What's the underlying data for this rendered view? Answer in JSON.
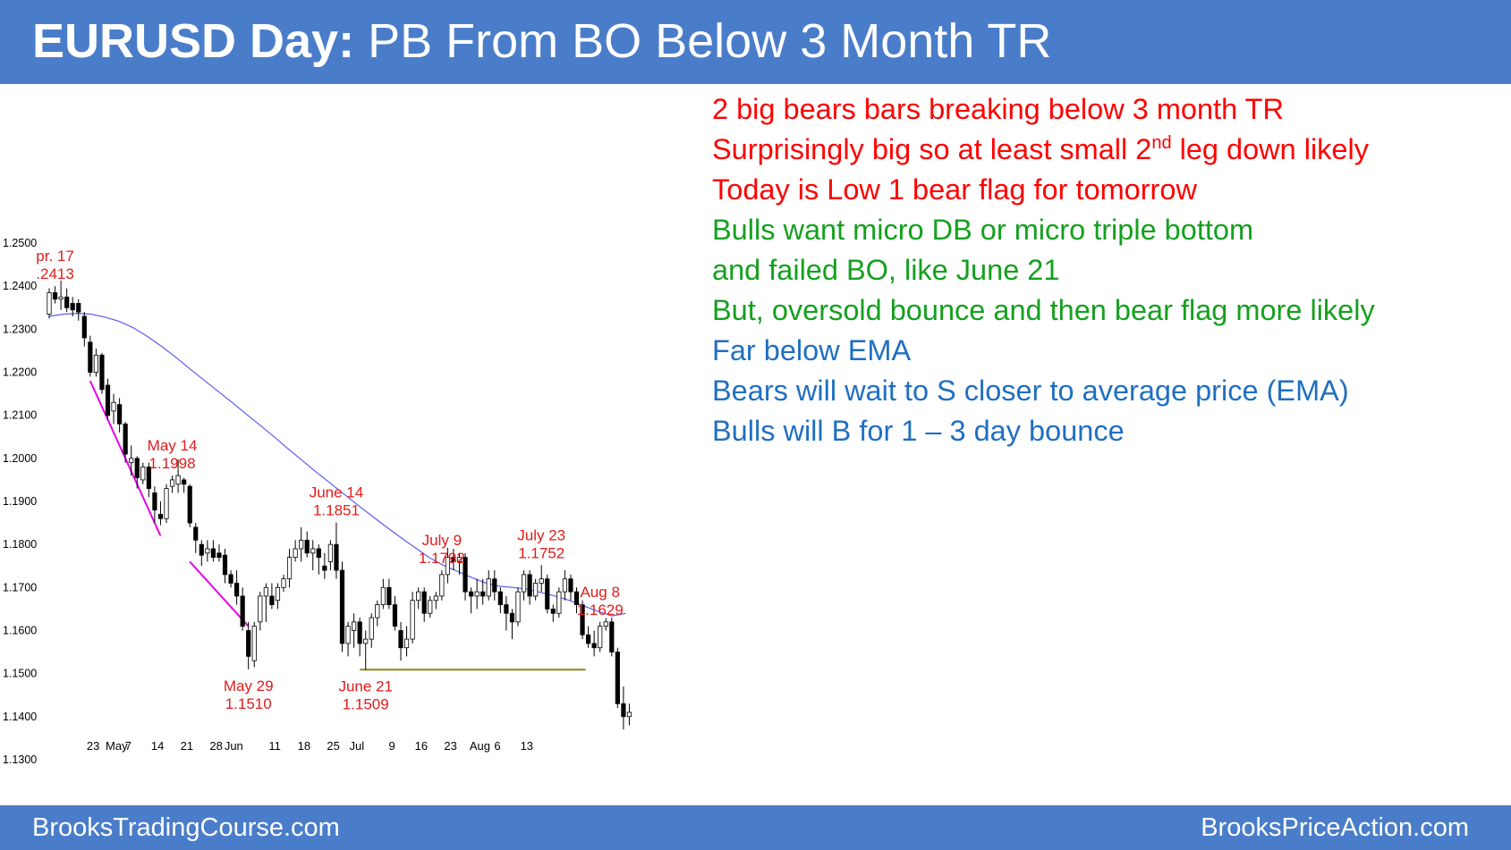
{
  "header": {
    "title_bold": "EURUSD Day:",
    "title_rest": " PB From BO Below 3 Month TR"
  },
  "footer": {
    "left": "BrooksTradingCourse.com",
    "right": "BrooksPriceAction.com"
  },
  "notes": [
    {
      "text": "2 big bears bars breaking  below 3 month TR",
      "color": "red"
    },
    {
      "text": "Surprisingly big so at least small 2",
      "sup": "nd",
      "text_after": " leg down likely",
      "color": "red"
    },
    {
      "text": "Today is Low 1 bear flag for tomorrow",
      "color": "red"
    },
    {
      "text": "Bulls want micro DB or micro triple bottom",
      "color": "green"
    },
    {
      "text": "and failed BO, like June 21",
      "color": "green"
    },
    {
      "text": "But, oversold bounce and then bear flag more likely",
      "color": "green"
    },
    {
      "text": "Far below EMA",
      "color": "blue"
    },
    {
      "text": "Bears will wait to S closer to average price (EMA)",
      "color": "blue"
    },
    {
      "text": "Bulls will B for 1 – 3 day bounce",
      "color": "blue"
    }
  ],
  "colors": {
    "header_bg": "#4a7dc9",
    "candle": "#000000",
    "ema": "#5b5bf0",
    "trendline": "#e600e6",
    "support": "#8b8a1a",
    "annotation": "#e31b1b"
  },
  "chart_data": {
    "type": "candlestick",
    "ylim": [
      1.125,
      1.255
    ],
    "yticks": [
      "1.2500",
      "1.2400",
      "1.2300",
      "1.2200",
      "1.2100",
      "1.2000",
      "1.1900",
      "1.1800",
      "1.1700",
      "1.1600",
      "1.1500",
      "1.1400",
      "1.1300"
    ],
    "xticks": [
      {
        "i": 2,
        "label": "23"
      },
      {
        "i": 6,
        "label": "May"
      },
      {
        "i": 8,
        "label": "7"
      },
      {
        "i": 13,
        "label": "14"
      },
      {
        "i": 18,
        "label": "21"
      },
      {
        "i": 23,
        "label": "28"
      },
      {
        "i": 26,
        "label": "Jun"
      },
      {
        "i": 33,
        "label": "11"
      },
      {
        "i": 38,
        "label": "18"
      },
      {
        "i": 43,
        "label": "25"
      },
      {
        "i": 47,
        "label": "Jul"
      },
      {
        "i": 53,
        "label": "9"
      },
      {
        "i": 58,
        "label": "16"
      },
      {
        "i": 63,
        "label": "23"
      },
      {
        "i": 68,
        "label": "Aug"
      },
      {
        "i": 71,
        "label": "6"
      },
      {
        "i": 76,
        "label": "13"
      }
    ],
    "candles": [
      [
        1.2335,
        1.2395,
        1.2325,
        1.2385
      ],
      [
        1.2385,
        1.24,
        1.236,
        1.237
      ],
      [
        1.237,
        1.2413,
        1.2345,
        1.2375
      ],
      [
        1.2375,
        1.2395,
        1.234,
        1.235
      ],
      [
        1.236,
        1.2375,
        1.233,
        1.2345
      ],
      [
        1.236,
        1.237,
        1.232,
        1.234
      ],
      [
        1.233,
        1.234,
        1.226,
        1.228
      ],
      [
        1.227,
        1.2285,
        1.219,
        1.22
      ],
      [
        1.22,
        1.2255,
        1.219,
        1.224
      ],
      [
        1.224,
        1.2245,
        1.215,
        1.216
      ],
      [
        1.217,
        1.2185,
        1.209,
        1.21
      ],
      [
        1.211,
        1.215,
        1.208,
        1.213
      ],
      [
        1.2125,
        1.214,
        1.206,
        1.208
      ],
      [
        1.208,
        1.2085,
        1.199,
        1.201
      ],
      [
        1.199,
        1.203,
        1.196,
        1.2
      ],
      [
        1.2,
        1.2005,
        1.193,
        1.1955
      ],
      [
        1.195,
        1.199,
        1.194,
        1.198
      ],
      [
        1.198,
        1.199,
        1.191,
        1.193
      ],
      [
        1.192,
        1.1935,
        1.185,
        1.188
      ],
      [
        1.187,
        1.19,
        1.1845,
        1.186
      ],
      [
        1.186,
        1.194,
        1.185,
        1.193
      ],
      [
        1.1935,
        1.196,
        1.192,
        1.195
      ],
      [
        1.194,
        1.1998,
        1.192,
        1.196
      ],
      [
        1.195,
        1.1955,
        1.192,
        1.194
      ],
      [
        1.1935,
        1.194,
        1.184,
        1.185
      ],
      [
        1.184,
        1.185,
        1.178,
        1.181
      ],
      [
        1.18,
        1.181,
        1.175,
        1.1775
      ],
      [
        1.178,
        1.181,
        1.176,
        1.179
      ],
      [
        1.179,
        1.181,
        1.176,
        1.177
      ],
      [
        1.178,
        1.18,
        1.176,
        1.177
      ],
      [
        1.1775,
        1.179,
        1.171,
        1.173
      ],
      [
        1.173,
        1.174,
        1.17,
        1.171
      ],
      [
        1.171,
        1.174,
        1.166,
        1.168
      ],
      [
        1.168,
        1.17,
        1.16,
        1.161
      ],
      [
        1.16,
        1.162,
        1.151,
        1.154
      ],
      [
        1.153,
        1.162,
        1.1515,
        1.161
      ],
      [
        1.162,
        1.169,
        1.16,
        1.168
      ],
      [
        1.168,
        1.171,
        1.162,
        1.17
      ],
      [
        1.168,
        1.171,
        1.165,
        1.166
      ],
      [
        1.167,
        1.171,
        1.165,
        1.17
      ],
      [
        1.17,
        1.173,
        1.169,
        1.172
      ],
      [
        1.172,
        1.179,
        1.17,
        1.177
      ],
      [
        1.177,
        1.181,
        1.176,
        1.179
      ],
      [
        1.179,
        1.184,
        1.176,
        1.181
      ],
      [
        1.181,
        1.183,
        1.177,
        1.178
      ],
      [
        1.178,
        1.181,
        1.174,
        1.179
      ],
      [
        1.179,
        1.18,
        1.173,
        1.177
      ],
      [
        1.175,
        1.178,
        1.172,
        1.174
      ],
      [
        1.176,
        1.181,
        1.174,
        1.18
      ],
      [
        1.18,
        1.1851,
        1.172,
        1.174
      ],
      [
        1.174,
        1.176,
        1.155,
        1.157
      ],
      [
        1.157,
        1.162,
        1.154,
        1.161
      ],
      [
        1.16,
        1.164,
        1.156,
        1.162
      ],
      [
        1.162,
        1.163,
        1.154,
        1.157
      ],
      [
        1.157,
        1.16,
        1.1509,
        1.158
      ],
      [
        1.158,
        1.164,
        1.156,
        1.163
      ],
      [
        1.163,
        1.167,
        1.161,
        1.166
      ],
      [
        1.166,
        1.172,
        1.165,
        1.17
      ],
      [
        1.17,
        1.172,
        1.165,
        1.166
      ],
      [
        1.166,
        1.168,
        1.16,
        1.161
      ],
      [
        1.16,
        1.162,
        1.153,
        1.156
      ],
      [
        1.156,
        1.161,
        1.154,
        1.158
      ],
      [
        1.158,
        1.169,
        1.157,
        1.167
      ],
      [
        1.167,
        1.17,
        1.165,
        1.169
      ],
      [
        1.169,
        1.17,
        1.162,
        1.164
      ],
      [
        1.164,
        1.168,
        1.163,
        1.167
      ],
      [
        1.167,
        1.169,
        1.165,
        1.168
      ],
      [
        1.168,
        1.174,
        1.167,
        1.173
      ],
      [
        1.173,
        1.1792,
        1.171,
        1.177
      ],
      [
        1.177,
        1.179,
        1.174,
        1.176
      ],
      [
        1.176,
        1.178,
        1.173,
        1.177
      ],
      [
        1.177,
        1.178,
        1.167,
        1.169
      ],
      [
        1.169,
        1.17,
        1.164,
        1.168
      ],
      [
        1.168,
        1.172,
        1.165,
        1.169
      ],
      [
        1.169,
        1.172,
        1.166,
        1.168
      ],
      [
        1.168,
        1.174,
        1.167,
        1.172
      ],
      [
        1.172,
        1.174,
        1.167,
        1.169
      ],
      [
        1.169,
        1.17,
        1.164,
        1.166
      ],
      [
        1.166,
        1.168,
        1.16,
        1.164
      ],
      [
        1.164,
        1.165,
        1.158,
        1.162
      ],
      [
        1.162,
        1.17,
        1.161,
        1.169
      ],
      [
        1.169,
        1.174,
        1.167,
        1.173
      ],
      [
        1.173,
        1.174,
        1.166,
        1.168
      ],
      [
        1.168,
        1.172,
        1.167,
        1.171
      ],
      [
        1.171,
        1.1752,
        1.169,
        1.172
      ],
      [
        1.172,
        1.173,
        1.164,
        1.165
      ],
      [
        1.165,
        1.166,
        1.162,
        1.164
      ],
      [
        1.164,
        1.17,
        1.163,
        1.169
      ],
      [
        1.169,
        1.174,
        1.167,
        1.172
      ],
      [
        1.172,
        1.173,
        1.167,
        1.169
      ],
      [
        1.169,
        1.17,
        1.164,
        1.166
      ],
      [
        1.166,
        1.167,
        1.158,
        1.159
      ],
      [
        1.159,
        1.161,
        1.156,
        1.157
      ],
      [
        1.157,
        1.16,
        1.154,
        1.156
      ],
      [
        1.156,
        1.162,
        1.155,
        1.161
      ],
      [
        1.161,
        1.1629,
        1.16,
        1.162
      ],
      [
        1.162,
        1.163,
        1.154,
        1.155
      ],
      [
        1.155,
        1.156,
        1.142,
        1.143
      ],
      [
        1.143,
        1.147,
        1.137,
        1.14
      ],
      [
        1.14,
        1.143,
        1.138,
        1.141
      ]
    ],
    "ema": [
      1.233,
      1.2335,
      1.2337,
      1.2335,
      1.2328,
      1.2318,
      1.2303,
      1.2283,
      1.226,
      1.2235,
      1.2208,
      1.2182,
      1.2156,
      1.213,
      1.2103,
      1.2077,
      1.205,
      1.2022,
      1.1995,
      1.1968,
      1.1942,
      1.1916,
      1.189,
      1.1865,
      1.184,
      1.1816,
      1.1793,
      1.177,
      1.1752,
      1.1738,
      1.1724,
      1.1711,
      1.1703,
      1.17,
      1.1696,
      1.1688,
      1.168,
      1.167,
      1.1657,
      1.1645,
      1.1634,
      1.164
    ],
    "trendlines": [
      {
        "points": [
          [
            7,
            1.218
          ],
          [
            19,
            1.182
          ]
        ]
      },
      {
        "points": [
          [
            24,
            1.176
          ],
          [
            34,
            1.161
          ]
        ]
      }
    ],
    "support": {
      "x": [
        53,
        90
      ],
      "y": 1.1509
    },
    "annotations": [
      {
        "i": 1,
        "lines": [
          "pr. 17",
          ".2413"
        ],
        "pos": "above"
      },
      {
        "i": 21,
        "lines": [
          "May 14",
          "1.1998"
        ],
        "pos": "above"
      },
      {
        "i": 34,
        "lines": [
          "May 29",
          "1.1510"
        ],
        "pos": "below"
      },
      {
        "i": 49,
        "lines": [
          "June 14",
          "1.1851"
        ],
        "pos": "above"
      },
      {
        "i": 54,
        "lines": [
          "June 21",
          "1.1509"
        ],
        "pos": "below"
      },
      {
        "i": 67,
        "lines": [
          "July 9",
          "1.1792"
        ],
        "pos": "above"
      },
      {
        "i": 84,
        "lines": [
          "July 23",
          "1.1752"
        ],
        "pos": "above"
      },
      {
        "i": 94,
        "lines": [
          "Aug 8",
          "1.1629"
        ],
        "pos": "above"
      }
    ]
  }
}
